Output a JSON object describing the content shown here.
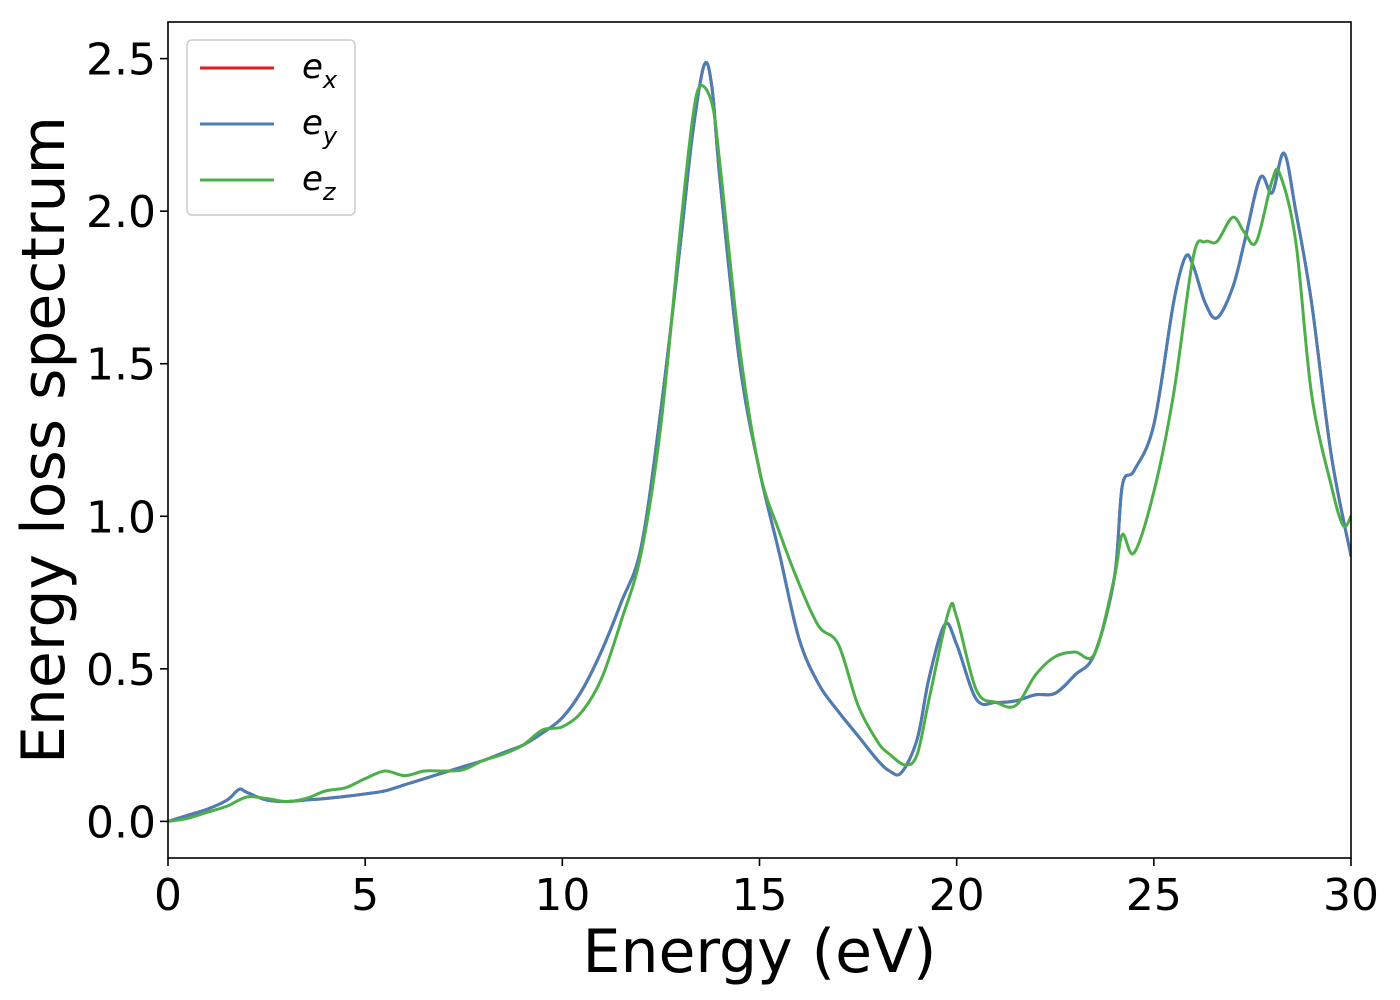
{
  "chart_data": {
    "type": "line",
    "title": "",
    "xlabel": "Energy (eV)",
    "ylabel": "Energy loss spectrum",
    "xlim": [
      0,
      30
    ],
    "ylim": [
      -0.12,
      2.62
    ],
    "xticks": [
      0,
      5,
      10,
      15,
      20,
      25,
      30
    ],
    "xtick_labels": [
      "0",
      "5",
      "10",
      "15",
      "20",
      "25",
      "30"
    ],
    "yticks": [
      0.0,
      0.5,
      1.0,
      1.5,
      2.0,
      2.5
    ],
    "ytick_labels": [
      "0.0",
      "0.5",
      "1.0",
      "1.5",
      "2.0",
      "2.5"
    ],
    "grid": false,
    "legend_position": "top-left",
    "series": [
      {
        "name": "e_x",
        "legend_base": "e",
        "legend_sub": "x",
        "color": "#e41a1c",
        "x": [
          0,
          0.5,
          1.0,
          1.5,
          1.8,
          2.0,
          2.5,
          3.0,
          3.5,
          4.0,
          4.5,
          5.0,
          5.5,
          6.0,
          6.5,
          7.0,
          7.5,
          8.0,
          8.5,
          9.0,
          9.5,
          10.0,
          10.5,
          11.0,
          11.5,
          12.0,
          12.5,
          13.0,
          13.3,
          13.6,
          13.8,
          14.0,
          14.5,
          15.0,
          15.5,
          16.0,
          16.5,
          17.0,
          17.5,
          18.0,
          18.3,
          18.6,
          19.0,
          19.3,
          19.7,
          20.0,
          20.5,
          21.0,
          21.5,
          22.0,
          22.5,
          23.0,
          23.5,
          24.0,
          24.2,
          24.5,
          25.0,
          25.5,
          25.8,
          26.0,
          26.3,
          26.6,
          27.0,
          27.3,
          27.7,
          28.0,
          28.3,
          28.6,
          29.0,
          29.5,
          30.0
        ],
        "y": [
          0.0,
          0.02,
          0.04,
          0.07,
          0.105,
          0.095,
          0.07,
          0.065,
          0.07,
          0.075,
          0.082,
          0.09,
          0.1,
          0.12,
          0.14,
          0.16,
          0.18,
          0.2,
          0.225,
          0.25,
          0.29,
          0.34,
          0.43,
          0.56,
          0.72,
          0.9,
          1.35,
          1.9,
          2.25,
          2.48,
          2.4,
          2.1,
          1.5,
          1.15,
          0.88,
          0.6,
          0.45,
          0.36,
          0.28,
          0.2,
          0.165,
          0.16,
          0.27,
          0.47,
          0.645,
          0.58,
          0.4,
          0.39,
          0.395,
          0.415,
          0.42,
          0.48,
          0.55,
          0.8,
          1.1,
          1.15,
          1.3,
          1.7,
          1.85,
          1.82,
          1.7,
          1.65,
          1.75,
          1.9,
          2.11,
          2.06,
          2.19,
          2.0,
          1.7,
          1.2,
          0.87
        ]
      },
      {
        "name": "e_y",
        "legend_base": "e",
        "legend_sub": "y",
        "color": "#4a7fb5",
        "x": [
          0,
          0.5,
          1.0,
          1.5,
          1.8,
          2.0,
          2.5,
          3.0,
          3.5,
          4.0,
          4.5,
          5.0,
          5.5,
          6.0,
          6.5,
          7.0,
          7.5,
          8.0,
          8.5,
          9.0,
          9.5,
          10.0,
          10.5,
          11.0,
          11.5,
          12.0,
          12.5,
          13.0,
          13.3,
          13.6,
          13.8,
          14.0,
          14.5,
          15.0,
          15.5,
          16.0,
          16.5,
          17.0,
          17.5,
          18.0,
          18.3,
          18.6,
          19.0,
          19.3,
          19.7,
          20.0,
          20.5,
          21.0,
          21.5,
          22.0,
          22.5,
          23.0,
          23.5,
          24.0,
          24.2,
          24.5,
          25.0,
          25.5,
          25.8,
          26.0,
          26.3,
          26.6,
          27.0,
          27.3,
          27.7,
          28.0,
          28.3,
          28.6,
          29.0,
          29.5,
          30.0
        ],
        "y": [
          0.0,
          0.02,
          0.04,
          0.07,
          0.105,
          0.095,
          0.07,
          0.065,
          0.07,
          0.075,
          0.082,
          0.09,
          0.1,
          0.12,
          0.14,
          0.16,
          0.18,
          0.2,
          0.225,
          0.25,
          0.29,
          0.34,
          0.43,
          0.56,
          0.72,
          0.9,
          1.35,
          1.9,
          2.25,
          2.48,
          2.4,
          2.1,
          1.5,
          1.15,
          0.88,
          0.6,
          0.45,
          0.36,
          0.28,
          0.2,
          0.165,
          0.16,
          0.27,
          0.47,
          0.645,
          0.58,
          0.4,
          0.39,
          0.395,
          0.415,
          0.42,
          0.48,
          0.55,
          0.8,
          1.1,
          1.15,
          1.3,
          1.7,
          1.85,
          1.82,
          1.7,
          1.65,
          1.75,
          1.9,
          2.11,
          2.06,
          2.19,
          2.0,
          1.7,
          1.2,
          0.87
        ]
      },
      {
        "name": "e_z",
        "legend_base": "e",
        "legend_sub": "z",
        "color": "#4daf4a",
        "x": [
          0,
          0.5,
          1.0,
          1.5,
          2.0,
          2.5,
          3.0,
          3.5,
          4.0,
          4.5,
          5.0,
          5.5,
          6.0,
          6.5,
          7.0,
          7.5,
          8.0,
          8.5,
          9.0,
          9.5,
          10.0,
          10.5,
          11.0,
          11.5,
          12.0,
          12.5,
          13.0,
          13.3,
          13.5,
          13.8,
          14.0,
          14.5,
          15.0,
          15.5,
          16.0,
          16.5,
          17.0,
          17.5,
          18.0,
          18.3,
          18.7,
          19.0,
          19.3,
          19.8,
          20.0,
          20.5,
          21.0,
          21.5,
          22.0,
          22.5,
          23.0,
          23.5,
          24.0,
          24.2,
          24.5,
          25.0,
          25.5,
          26.0,
          26.3,
          26.6,
          27.0,
          27.3,
          27.6,
          28.0,
          28.2,
          28.6,
          29.0,
          29.5,
          29.8,
          30.0
        ],
        "y": [
          0.0,
          0.01,
          0.03,
          0.05,
          0.08,
          0.075,
          0.065,
          0.075,
          0.1,
          0.11,
          0.14,
          0.165,
          0.15,
          0.165,
          0.165,
          0.17,
          0.2,
          0.22,
          0.25,
          0.3,
          0.31,
          0.36,
          0.47,
          0.66,
          0.88,
          1.3,
          1.95,
          2.3,
          2.41,
          2.35,
          2.15,
          1.55,
          1.15,
          0.95,
          0.78,
          0.64,
          0.58,
          0.38,
          0.26,
          0.22,
          0.185,
          0.22,
          0.4,
          0.69,
          0.67,
          0.43,
          0.39,
          0.38,
          0.48,
          0.54,
          0.555,
          0.55,
          0.8,
          0.94,
          0.88,
          1.08,
          1.4,
          1.85,
          1.9,
          1.9,
          1.98,
          1.93,
          1.9,
          2.1,
          2.12,
          1.9,
          1.4,
          1.1,
          0.97,
          1.0
        ]
      }
    ]
  }
}
